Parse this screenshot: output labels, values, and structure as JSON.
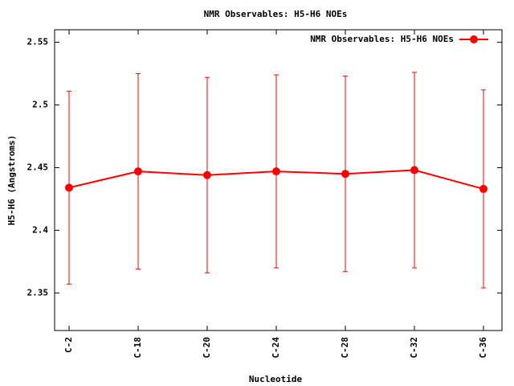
{
  "chart_data": {
    "type": "line",
    "title": "NMR Observables: H5-H6 NOEs",
    "x_label": "Nucleotide",
    "y_label": "H5-H6 (Angstroms)",
    "categories": [
      "C-2",
      "C-18",
      "C-20",
      "C-24",
      "C-28",
      "C-32",
      "C-36"
    ],
    "series": [
      {
        "name": "NMR Observables: H5-H6 NOEs",
        "color": "#ff0000",
        "values": [
          2.434,
          2.447,
          2.444,
          2.447,
          2.445,
          2.448,
          2.433
        ],
        "errors": [
          0.077,
          0.078,
          0.078,
          0.077,
          0.078,
          0.078,
          0.079
        ]
      }
    ],
    "ylim": [
      2.32,
      2.56
    ],
    "yticks": [
      2.35,
      2.4,
      2.45,
      2.5,
      2.55
    ],
    "legend": "top-right"
  }
}
